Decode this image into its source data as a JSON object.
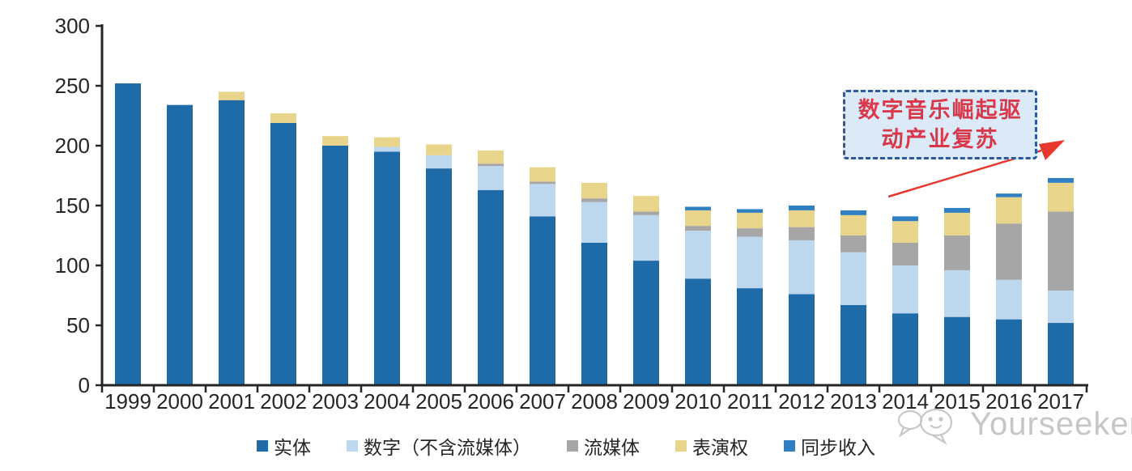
{
  "chart_data": {
    "type": "bar",
    "stacked": true,
    "categories": [
      "1999",
      "2000",
      "2001",
      "2002",
      "2003",
      "2004",
      "2005",
      "2006",
      "2007",
      "2008",
      "2009",
      "2010",
      "2011",
      "2012",
      "2013",
      "2014",
      "2015",
      "2016",
      "2017"
    ],
    "series": [
      {
        "name": "实体",
        "color": "#1f6ba8",
        "values": [
          252,
          234,
          238,
          219,
          200,
          195,
          181,
          163,
          141,
          119,
          104,
          89,
          81,
          76,
          67,
          60,
          57,
          55,
          52
        ]
      },
      {
        "name": "数字（不含流媒体）",
        "color": "#bdd7ee",
        "values": [
          0,
          0,
          0,
          0,
          0,
          4,
          11,
          20,
          27,
          34,
          38,
          40,
          43,
          45,
          44,
          40,
          39,
          33,
          27
        ]
      },
      {
        "name": "流媒体",
        "color": "#a6a6a6",
        "values": [
          0,
          0,
          0,
          0,
          0,
          0,
          0,
          2,
          2,
          3,
          3,
          4,
          7,
          11,
          14,
          19,
          29,
          47,
          66
        ]
      },
      {
        "name": "表演权",
        "color": "#e8d48a",
        "values": [
          0,
          0,
          7,
          8,
          8,
          8,
          9,
          11,
          12,
          13,
          13,
          13,
          13,
          14,
          17,
          18,
          19,
          22,
          24
        ]
      },
      {
        "name": "同步收入",
        "color": "#2f7fc1",
        "values": [
          0,
          0,
          0,
          0,
          0,
          0,
          0,
          0,
          0,
          0,
          0,
          3,
          3,
          4,
          4,
          4,
          4,
          3,
          4
        ]
      }
    ],
    "totals": [
      252,
      234,
      245,
      227,
      208,
      207,
      201,
      196,
      182,
      169,
      158,
      149,
      147,
      150,
      146,
      141,
      148,
      160,
      173
    ],
    "ylim": [
      0,
      300
    ],
    "yticks": [
      0,
      50,
      100,
      150,
      200,
      250,
      300
    ],
    "grid": false,
    "legend_position": "bottom",
    "axis_color": "#262626",
    "tick_label_color": "#262626"
  },
  "annotation": {
    "line1": "数字音乐崛起驱",
    "line2": "动产业复苏",
    "text_color": "#d9384a",
    "box_fill": "#dce9f7",
    "box_border_color": "#2e5b9f",
    "arrow_color": "#e8372f"
  },
  "watermark": {
    "text": "Yourseeker",
    "color": "#c6c6c6"
  }
}
